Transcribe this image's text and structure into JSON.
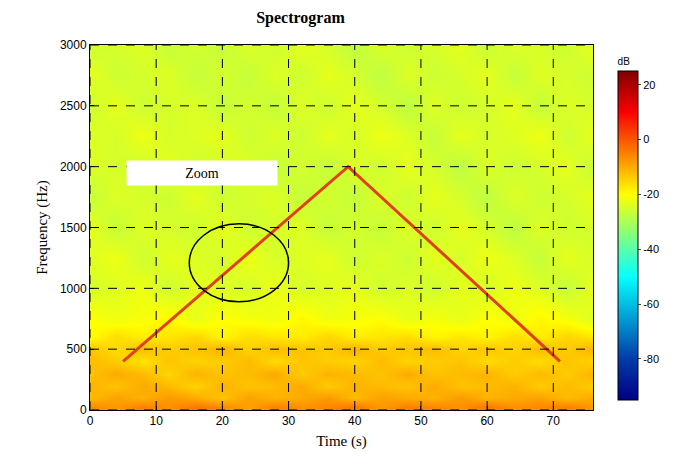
{
  "chart_data": {
    "type": "heatmap",
    "title": "Spectrogram",
    "x_label": "Time (s)",
    "y_label": "Frequency (Hz)",
    "xlim": [
      0,
      76
    ],
    "xticks": [
      0,
      10,
      20,
      30,
      40,
      50,
      60,
      70
    ],
    "ylim": [
      0,
      3000
    ],
    "yticks": [
      0,
      500,
      1000,
      1500,
      2000,
      2500,
      3000
    ],
    "grid": true,
    "colorbar_title": "dB",
    "zlim": [
      -95,
      25
    ],
    "zticks": [
      -80,
      -60,
      -40,
      -20,
      0,
      20
    ],
    "heatmap": {
      "x": [
        0,
        4,
        8,
        12,
        16,
        20,
        24,
        28,
        32,
        36,
        40,
        44,
        48,
        52,
        56,
        60,
        64,
        68,
        72,
        76
      ],
      "y": [
        25,
        100,
        200,
        300,
        400,
        500,
        600,
        750,
        1000,
        1250,
        1500,
        1750,
        2000,
        2250,
        2500,
        2750,
        3000
      ],
      "z": [
        [
          -6,
          -8,
          -5,
          -7,
          -4,
          -6,
          -9,
          -5,
          -7,
          -6,
          -4,
          -8,
          -5,
          -6,
          -7,
          -4,
          -7,
          -6,
          -5,
          -8
        ],
        [
          -12,
          -9,
          -11,
          -8,
          -10,
          -13,
          -9,
          -11,
          -10,
          -8,
          -12,
          -9,
          -10,
          -11,
          -8,
          -11,
          -10,
          -9,
          -12,
          -10
        ],
        [
          -11,
          -13,
          -10,
          -12,
          -15,
          -11,
          -13,
          -12,
          -10,
          -14,
          -11,
          -12,
          -13,
          -10,
          -13,
          -12,
          -11,
          -14,
          -12,
          -14
        ],
        [
          -13,
          -10,
          -12,
          -15,
          -11,
          -13,
          -12,
          -10,
          -14,
          -11,
          -12,
          -13,
          -10,
          -13,
          -12,
          -11,
          -14,
          -12,
          -14,
          -11
        ],
        [
          -12,
          -14,
          -17,
          -13,
          -15,
          -14,
          -12,
          -16,
          -13,
          -14,
          -15,
          -12,
          -15,
          -14,
          -13,
          -16,
          -14,
          -16,
          -13,
          -15
        ],
        [
          -13,
          -16,
          -12,
          -14,
          -13,
          -11,
          -15,
          -12,
          -13,
          -14,
          -11,
          -14,
          -13,
          -12,
          -15,
          -13,
          -15,
          -12,
          -14,
          -11
        ],
        [
          -20,
          -16,
          -18,
          -17,
          -15,
          -19,
          -16,
          -17,
          -18,
          -15,
          -18,
          -17,
          -16,
          -19,
          -17,
          -19,
          -16,
          -18,
          -15,
          -17
        ],
        [
          -20,
          -22,
          -21,
          -19,
          -23,
          -20,
          -21,
          -22,
          -19,
          -22,
          -21,
          -20,
          -23,
          -21,
          -23,
          -20,
          -22,
          -19,
          -21,
          -24
        ],
        [
          -25,
          -24,
          -22,
          -26,
          -23,
          -24,
          -25,
          -22,
          -25,
          -24,
          -23,
          -26,
          -24,
          -26,
          -23,
          -25,
          -22,
          -24,
          -27,
          -23
        ],
        [
          -24,
          -22,
          -26,
          -23,
          -24,
          -25,
          -22,
          -25,
          -24,
          -23,
          -26,
          -24,
          -26,
          -23,
          -25,
          -22,
          -24,
          -27,
          -23,
          -25
        ],
        [
          -23,
          -27,
          -24,
          -25,
          -26,
          -23,
          -26,
          -25,
          -24,
          -27,
          -25,
          -27,
          -24,
          -26,
          -23,
          -25,
          -28,
          -24,
          -26,
          -25
        ],
        [
          -27,
          -24,
          -25,
          -26,
          -23,
          -26,
          -25,
          -24,
          -27,
          -25,
          -27,
          -24,
          -26,
          -23,
          -25,
          -28,
          -24,
          -26,
          -25,
          -23
        ],
        [
          -24,
          -25,
          -26,
          -23,
          -26,
          -25,
          -24,
          -27,
          -25,
          -27,
          -24,
          -26,
          -23,
          -25,
          -28,
          -24,
          -26,
          -25,
          -23,
          -27
        ],
        [
          -24,
          -25,
          -22,
          -25,
          -24,
          -23,
          -26,
          -24,
          -26,
          -23,
          -25,
          -22,
          -24,
          -27,
          -23,
          -25,
          -24,
          -22,
          -26,
          -23
        ],
        [
          -26,
          -23,
          -26,
          -25,
          -24,
          -27,
          -25,
          -27,
          -24,
          -26,
          -23,
          -25,
          -28,
          -24,
          -26,
          -25,
          -23,
          -27,
          -24,
          -25
        ],
        [
          -23,
          -26,
          -25,
          -24,
          -27,
          -25,
          -27,
          -24,
          -26,
          -23,
          -25,
          -28,
          -24,
          -26,
          -25,
          -23,
          -27,
          -24,
          -25,
          -26
        ],
        [
          -26,
          -25,
          -24,
          -27,
          -25,
          -27,
          -24,
          -26,
          -23,
          -25,
          -28,
          -24,
          -26,
          -25,
          -23,
          -27,
          -24,
          -25,
          -26,
          -23
        ]
      ]
    },
    "chirp": {
      "x": [
        5,
        39,
        71
      ],
      "y": [
        400,
        2000,
        400
      ],
      "color": "#e0401a"
    },
    "annotations": [
      {
        "text": "Zoom",
        "x": 5.5,
        "y": 1945
      }
    ],
    "ellipse": {
      "x": [
        15,
        30
      ],
      "y": [
        890,
        1530
      ]
    }
  }
}
